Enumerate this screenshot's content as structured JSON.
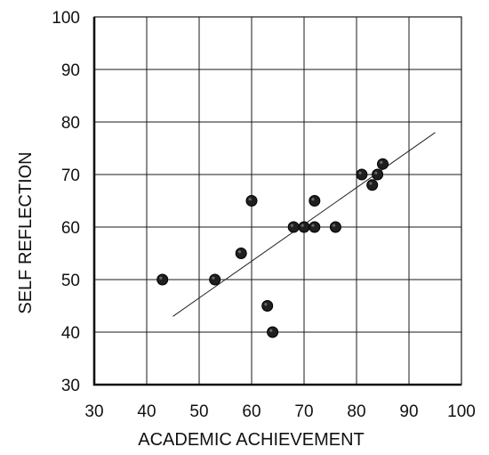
{
  "chart_data": {
    "type": "scatter",
    "xlabel": "ACADEMIC ACHIEVEMENT",
    "ylabel": "SELF REFLECTION",
    "xlim": [
      30,
      100
    ],
    "ylim": [
      30,
      100
    ],
    "xticks": [
      30,
      40,
      50,
      60,
      70,
      80,
      90,
      100
    ],
    "yticks": [
      30,
      40,
      50,
      60,
      70,
      80,
      90,
      100
    ],
    "grid": true,
    "points": [
      {
        "x": 43,
        "y": 50
      },
      {
        "x": 53,
        "y": 50
      },
      {
        "x": 58,
        "y": 55
      },
      {
        "x": 60,
        "y": 65
      },
      {
        "x": 63,
        "y": 45
      },
      {
        "x": 64,
        "y": 40
      },
      {
        "x": 68,
        "y": 60
      },
      {
        "x": 70,
        "y": 60
      },
      {
        "x": 72,
        "y": 60
      },
      {
        "x": 72,
        "y": 65
      },
      {
        "x": 76,
        "y": 60
      },
      {
        "x": 81,
        "y": 70
      },
      {
        "x": 83,
        "y": 68
      },
      {
        "x": 84,
        "y": 70
      },
      {
        "x": 85,
        "y": 72
      }
    ],
    "trendline": {
      "x": [
        45,
        95
      ],
      "y": [
        43,
        78
      ]
    },
    "colors": {
      "point": "#1f1f1f",
      "grid": "#1a1a1a"
    }
  }
}
